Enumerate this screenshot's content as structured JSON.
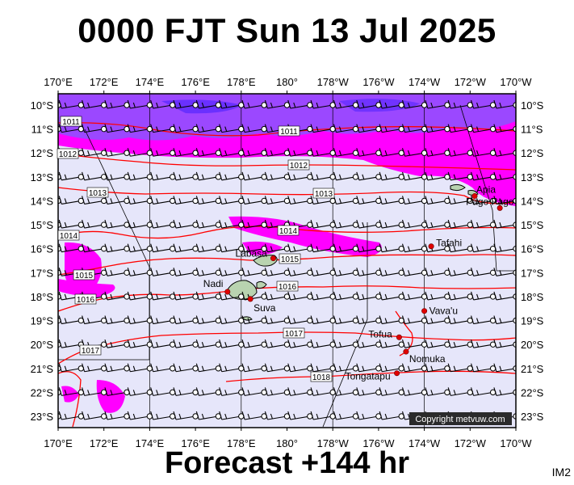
{
  "title": "0000 FJT Sun 13 Jul 2025",
  "footer": "Forecast +144 hr",
  "image_code": "IM2",
  "copyright": "Copyright metvuw.com",
  "colors": {
    "background": "#e6e6fa",
    "rain_light": "#ff00ff",
    "rain_heavy": "#7b3fff",
    "isobar": "#ff0000",
    "land": "#b9d3b0",
    "station": "#e00000"
  },
  "lon_labels": [
    "170°E",
    "172°E",
    "174°E",
    "176°E",
    "178°E",
    "180°",
    "178°W",
    "176°W",
    "174°W",
    "172°W",
    "170°W"
  ],
  "lat_labels": [
    "10°S",
    "11°S",
    "12°S",
    "13°S",
    "14°S",
    "15°S",
    "16°S",
    "17°S",
    "18°S",
    "19°S",
    "20°S",
    "21°S",
    "22°S",
    "23°S"
  ],
  "isobars": [
    "1011",
    "1011",
    "1012",
    "1012",
    "1013",
    "1013",
    "1014",
    "1014",
    "1015",
    "1015",
    "1016",
    "1016",
    "1017",
    "1017",
    "1018"
  ],
  "places": [
    {
      "name": "Apia",
      "lon": -171.8,
      "lat": -13.8
    },
    {
      "name": "Pago Pago",
      "lon": -170.7,
      "lat": -14.3
    },
    {
      "name": "Tafahi",
      "lon": -173.7,
      "lat": -15.9
    },
    {
      "name": "Labasa",
      "lon": 179.4,
      "lat": -16.4
    },
    {
      "name": "Nadi",
      "lon": 177.4,
      "lat": -17.8
    },
    {
      "name": "Suva",
      "lon": 178.4,
      "lat": -18.1
    },
    {
      "name": "Vava'u",
      "lon": -174.0,
      "lat": -18.6
    },
    {
      "name": "Tofua",
      "lon": -175.1,
      "lat": -19.7
    },
    {
      "name": "Nomuka",
      "lon": -174.8,
      "lat": -20.3
    },
    {
      "name": "Tongatapu",
      "lon": -175.2,
      "lat": -21.2
    }
  ]
}
